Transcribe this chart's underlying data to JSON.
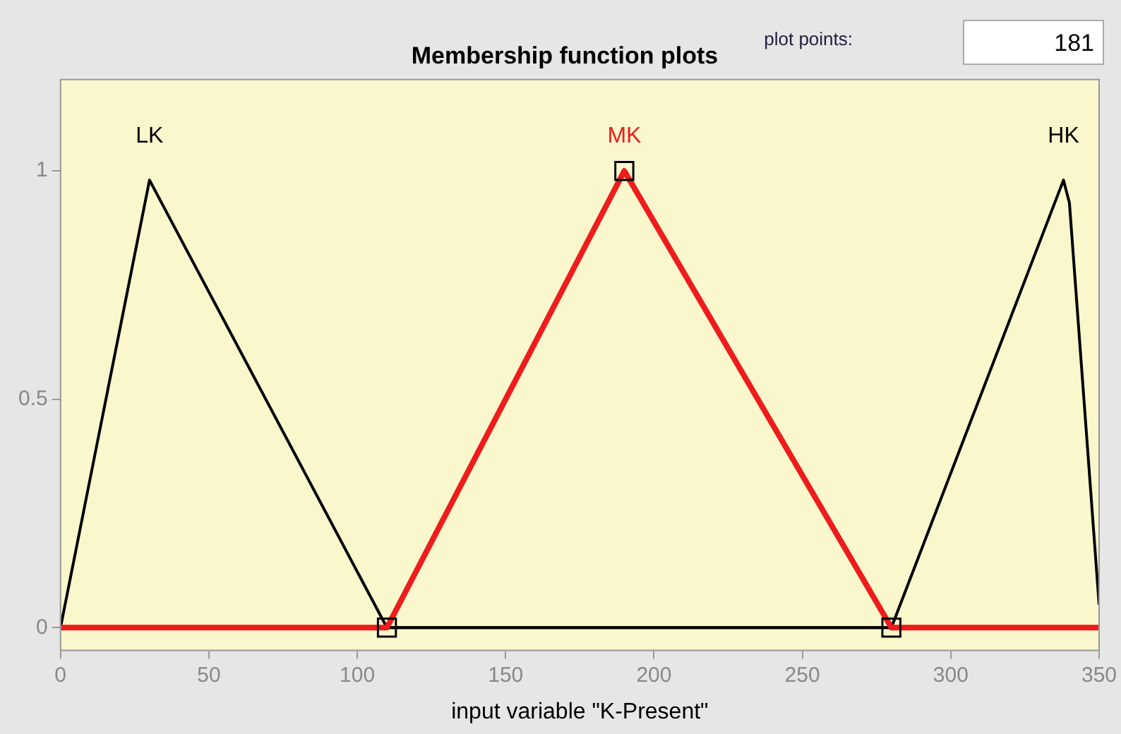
{
  "chart_data": {
    "type": "line",
    "title": "Membership function plots",
    "xlabel": "input variable \"K-Present\"",
    "xlim": [
      0,
      350
    ],
    "xticks": [
      0,
      50,
      100,
      150,
      200,
      250,
      300,
      350
    ],
    "ylim": [
      -0.05,
      1.2
    ],
    "yticks": [
      0,
      0.5,
      1
    ],
    "grid": false,
    "legend": false,
    "annotations": [
      "plot points:",
      "181"
    ],
    "series": [
      {
        "name": "LK",
        "color": "#000000",
        "x": [
          0,
          30,
          110,
          350
        ],
        "values": [
          0,
          0.98,
          0,
          0
        ]
      },
      {
        "name": "MK",
        "color": "#ee1c1c",
        "x": [
          0,
          110,
          190,
          280,
          350
        ],
        "values": [
          0,
          0,
          1,
          0,
          0
        ]
      },
      {
        "name": "HK",
        "color": "#000000",
        "x": [
          0,
          280,
          338,
          340,
          350
        ],
        "values": [
          0,
          0,
          0.98,
          0.93,
          0.05
        ]
      },
      {
        "type": "scatter",
        "marker": "square",
        "color": "#000000",
        "x": [
          110,
          190,
          280
        ],
        "values": [
          0,
          1,
          0
        ]
      }
    ]
  }
}
